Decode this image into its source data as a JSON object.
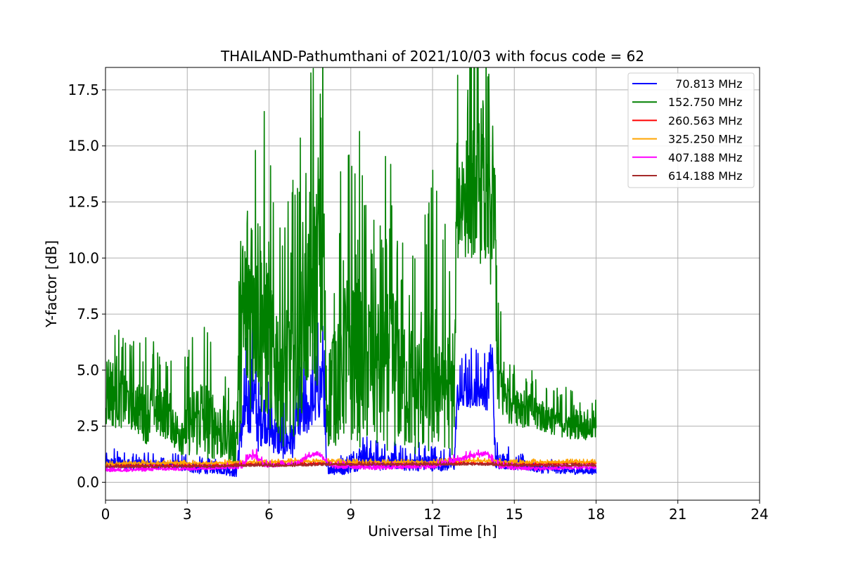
{
  "chart_data": {
    "type": "line",
    "title": "THAILAND-Pathumthani of 2021/10/03 with focus code = 62",
    "xlabel": "Universal Time [h]",
    "ylabel": "Y-factor [dB]",
    "xlim": [
      0,
      24
    ],
    "ylim": [
      -0.8,
      18.5
    ],
    "xticks": [
      0,
      3,
      6,
      9,
      12,
      15,
      18,
      21,
      24
    ],
    "xtick_labels": [
      "0",
      "3",
      "6",
      "9",
      "12",
      "15",
      "18",
      "21",
      "24"
    ],
    "yticks": [
      0.0,
      2.5,
      5.0,
      7.5,
      10.0,
      12.5,
      15.0,
      17.5
    ],
    "ytick_labels": [
      "0.0",
      "2.5",
      "5.0",
      "7.5",
      "10.0",
      "12.5",
      "15.0",
      "17.5"
    ],
    "grid": true,
    "legend_position": "top-right",
    "series": [
      {
        "name": "  70.813 MHz",
        "color": "#0000ff",
        "x": [
          0,
          0.5,
          1,
          1.5,
          2,
          2.5,
          3,
          3.5,
          4,
          4.5,
          4.8,
          5.0,
          5.2,
          5.4,
          5.6,
          5.8,
          6.0,
          6.3,
          6.6,
          6.9,
          7.2,
          7.5,
          7.8,
          8.0,
          8.1,
          8.3,
          8.6,
          9.0,
          9.5,
          10,
          10.5,
          11,
          11.5,
          12,
          12.5,
          12.8,
          12.9,
          13.2,
          13.6,
          14.0,
          14.2,
          14.3,
          14.5,
          15,
          15.5,
          16,
          16.5,
          17,
          17.5,
          18
        ],
        "y": [
          0.8,
          0.9,
          0.8,
          0.85,
          0.8,
          0.8,
          0.7,
          0.6,
          0.6,
          0.55,
          0.5,
          2.5,
          3.2,
          4.3,
          2.5,
          3.0,
          2.5,
          2.0,
          1.8,
          2.0,
          3.0,
          3.4,
          4.0,
          4.8,
          0.7,
          0.6,
          0.6,
          0.9,
          1.2,
          0.9,
          1.0,
          0.8,
          0.9,
          0.9,
          0.8,
          0.8,
          3.8,
          4.0,
          4.2,
          4.0,
          5.5,
          0.9,
          1.0,
          0.8,
          0.7,
          0.6,
          0.6,
          0.5,
          0.5,
          0.5
        ],
        "spread": [
          0.25,
          0.3,
          0.25,
          0.25,
          0.2,
          0.2,
          0.25,
          0.25,
          0.2,
          0.25,
          0.3,
          1.2,
          1.5,
          1.8,
          1.2,
          1.2,
          1.0,
          0.9,
          0.8,
          0.9,
          1.2,
          1.2,
          1.4,
          1.8,
          0.3,
          0.25,
          0.3,
          0.5,
          0.6,
          0.4,
          0.4,
          0.3,
          0.4,
          0.4,
          0.3,
          0.3,
          0.7,
          0.8,
          0.8,
          0.8,
          1.0,
          0.4,
          0.4,
          0.25,
          0.2,
          0.2,
          0.2,
          0.15,
          0.15,
          0.15
        ]
      },
      {
        "name": "152.750 MHz",
        "color": "#008000",
        "x": [
          0,
          0.3,
          0.6,
          1.0,
          1.5,
          2.0,
          2.4,
          2.6,
          3.0,
          3.5,
          4.0,
          4.4,
          4.8,
          4.9,
          5.2,
          5.5,
          5.8,
          6.2,
          6.6,
          7.0,
          7.3,
          7.6,
          7.9,
          8.0,
          8.1,
          8.3,
          8.7,
          9.0,
          9.5,
          10.0,
          10.5,
          11.0,
          11.5,
          12.0,
          12.5,
          12.8,
          12.9,
          13.3,
          13.7,
          14.0,
          14.3,
          14.4,
          14.8,
          15.2,
          15.6,
          16.0,
          16.5,
          17.0,
          17.5,
          18.0
        ],
        "y": [
          4.2,
          4.0,
          3.8,
          3.5,
          3.2,
          3.3,
          3.0,
          2.2,
          2.6,
          3.0,
          2.6,
          2.0,
          1.8,
          5.5,
          8.0,
          9.0,
          7.0,
          5.5,
          5.0,
          6.0,
          7.5,
          8.5,
          9.5,
          11.0,
          3.0,
          4.5,
          5.5,
          6.0,
          5.5,
          5.0,
          5.5,
          4.5,
          4.0,
          5.0,
          4.5,
          3.5,
          12.5,
          13.0,
          13.5,
          12.0,
          11.5,
          4.5,
          3.8,
          3.5,
          3.2,
          3.0,
          2.8,
          2.6,
          2.5,
          2.4
        ],
        "spread": [
          1.8,
          1.6,
          1.4,
          1.2,
          1.5,
          1.3,
          1.2,
          1.0,
          1.4,
          2.0,
          1.6,
          1.2,
          1.2,
          4.5,
          5.5,
          5.0,
          4.5,
          3.5,
          3.5,
          3.8,
          4.0,
          4.5,
          5.5,
          6.0,
          1.5,
          3.0,
          3.8,
          4.5,
          4.0,
          3.8,
          4.0,
          3.2,
          3.0,
          3.8,
          3.0,
          2.5,
          2.8,
          3.0,
          3.5,
          3.5,
          3.5,
          2.0,
          1.2,
          1.0,
          0.9,
          0.8,
          0.7,
          0.7,
          0.6,
          0.6
        ]
      },
      {
        "name": "260.563 MHz",
        "color": "#ff0000",
        "x": [
          0,
          1,
          2,
          3,
          4,
          5,
          5.5,
          6,
          7,
          8,
          9,
          10,
          11,
          12,
          13,
          14,
          15,
          16,
          17,
          18
        ],
        "y": [
          0.75,
          0.75,
          0.75,
          0.75,
          0.75,
          0.8,
          0.8,
          0.8,
          0.8,
          0.85,
          0.8,
          0.8,
          0.8,
          0.8,
          0.85,
          0.85,
          0.8,
          0.8,
          0.85,
          0.85
        ],
        "spread": [
          0.05,
          0.05,
          0.05,
          0.05,
          0.05,
          0.05,
          0.05,
          0.05,
          0.05,
          0.05,
          0.05,
          0.05,
          0.05,
          0.05,
          0.05,
          0.05,
          0.05,
          0.05,
          0.05,
          0.05
        ]
      },
      {
        "name": "325.250 MHz",
        "color": "#ffa500",
        "x": [
          0,
          1,
          2,
          3,
          4,
          5,
          6,
          7,
          8,
          9,
          10,
          11,
          12,
          13,
          14,
          15,
          16,
          17,
          18
        ],
        "y": [
          0.8,
          0.85,
          0.85,
          0.85,
          0.85,
          0.9,
          0.9,
          0.95,
          0.95,
          0.9,
          0.9,
          0.9,
          0.9,
          0.95,
          0.95,
          0.9,
          0.9,
          0.9,
          0.9
        ],
        "spread": [
          0.06,
          0.06,
          0.06,
          0.06,
          0.06,
          0.06,
          0.06,
          0.06,
          0.06,
          0.06,
          0.06,
          0.06,
          0.06,
          0.06,
          0.06,
          0.06,
          0.06,
          0.06,
          0.06
        ]
      },
      {
        "name": "407.188 MHz",
        "color": "#ff00ff",
        "x": [
          0,
          1,
          2,
          3,
          4,
          5,
          5.2,
          5.5,
          5.8,
          6,
          7,
          7.5,
          7.8,
          8.0,
          8.3,
          9,
          10,
          11,
          12,
          12.9,
          13.5,
          14.0,
          14.3,
          14.5,
          15,
          16,
          17,
          18
        ],
        "y": [
          0.55,
          0.55,
          0.6,
          0.6,
          0.65,
          0.7,
          1.1,
          1.2,
          0.8,
          0.75,
          0.85,
          1.2,
          1.3,
          1.1,
          0.7,
          0.7,
          0.65,
          0.7,
          0.7,
          1.0,
          1.2,
          1.3,
          0.8,
          0.7,
          0.65,
          0.6,
          0.65,
          0.65
        ],
        "spread": [
          0.08,
          0.08,
          0.08,
          0.08,
          0.08,
          0.1,
          0.15,
          0.15,
          0.1,
          0.1,
          0.1,
          0.1,
          0.12,
          0.12,
          0.1,
          0.1,
          0.1,
          0.1,
          0.1,
          0.12,
          0.12,
          0.15,
          0.1,
          0.1,
          0.1,
          0.08,
          0.08,
          0.08
        ]
      },
      {
        "name": "614.188 MHz",
        "color": "#a52a2a",
        "x": [
          0,
          1,
          2,
          3,
          4,
          5,
          6,
          7,
          8,
          9,
          10,
          11,
          12,
          13,
          14,
          15,
          16,
          17,
          18
        ],
        "y": [
          0.7,
          0.7,
          0.7,
          0.7,
          0.7,
          0.75,
          0.75,
          0.75,
          0.8,
          0.8,
          0.8,
          0.8,
          0.8,
          0.8,
          0.8,
          0.75,
          0.75,
          0.75,
          0.75
        ],
        "spread": [
          0.05,
          0.05,
          0.05,
          0.05,
          0.05,
          0.05,
          0.05,
          0.05,
          0.05,
          0.05,
          0.05,
          0.05,
          0.05,
          0.05,
          0.05,
          0.05,
          0.05,
          0.05,
          0.05
        ]
      }
    ]
  }
}
